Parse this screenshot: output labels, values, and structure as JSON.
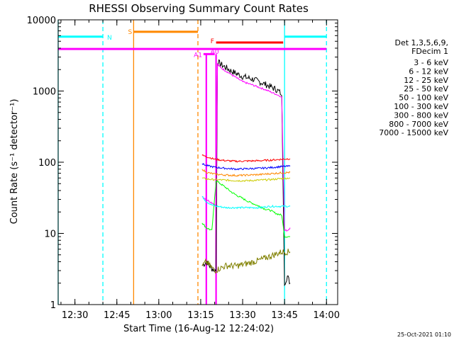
{
  "chart_data": {
    "type": "line",
    "title": "RHESSI Observing Summary Count Rates",
    "xlabel": "Start Time (16-Aug-12 12:24:02)",
    "ylabel": "Count Rate (s⁻¹ detector⁻¹)",
    "timestamp": "25-Oct-2021 01:10",
    "yscale": "log",
    "xlim": [
      0,
      100
    ],
    "ylim": [
      1,
      10000
    ],
    "x_unit": "minutes after 12:24:02",
    "xticks": [
      {
        "x": 6,
        "label": "12:30"
      },
      {
        "x": 21,
        "label": "12:45"
      },
      {
        "x": 36,
        "label": "13:00"
      },
      {
        "x": 51,
        "label": "13:15"
      },
      {
        "x": 66,
        "label": "13:30"
      },
      {
        "x": 81,
        "label": "13:45"
      },
      {
        "x": 96,
        "label": "14:00"
      }
    ],
    "yticks": [
      {
        "y": 1,
        "label": "1"
      },
      {
        "y": 10,
        "label": "10"
      },
      {
        "y": 100,
        "label": "100"
      },
      {
        "y": 1000,
        "label": "1000"
      },
      {
        "y": 10000,
        "label": "10000"
      }
    ],
    "legend": {
      "position": "right",
      "header": [
        "Det 1,3,5,6,9,",
        "FDecim 1"
      ],
      "entries": [
        {
          "label": "3 - 6 keV",
          "color": "#000000"
        },
        {
          "label": "6 - 12 keV",
          "color": "#ff00ff"
        },
        {
          "label": "12 - 25 keV",
          "color": "#00ff00"
        },
        {
          "label": "25 - 50 keV",
          "color": "#00ffff"
        },
        {
          "label": "50 - 100 keV",
          "color": "#cccc00"
        },
        {
          "label": "100 - 300 keV",
          "color": "#ff0000"
        },
        {
          "label": "300 - 800 keV",
          "color": "#0000ff"
        },
        {
          "label": "800 - 7000 keV",
          "color": "#ff8800"
        },
        {
          "label": "7000 - 15000 keV",
          "color": "#808000"
        }
      ]
    },
    "series": [
      {
        "name": "3 - 6 keV",
        "color": "#000000",
        "x": [
          51.5,
          53,
          55,
          56.5,
          57,
          58,
          62,
          66,
          70,
          74,
          78,
          79.5,
          80,
          81,
          82,
          83
        ],
        "y": [
          3.5,
          4,
          3.2,
          3,
          2600,
          2400,
          1900,
          1600,
          1450,
          1250,
          1050,
          950,
          800,
          2,
          2.5,
          2
        ]
      },
      {
        "name": "6 - 12 keV",
        "color": "#ff00ff",
        "x": [
          51.5,
          53,
          55,
          56.5,
          57,
          58,
          62,
          66,
          70,
          74,
          78,
          79.5,
          80,
          81,
          82,
          83
        ],
        "y": [
          33,
          30,
          27,
          25,
          2400,
          2150,
          1700,
          1350,
          1200,
          1050,
          900,
          850,
          820,
          11,
          11,
          12
        ]
      },
      {
        "name": "12 - 25 keV",
        "color": "#00ff00",
        "x": [
          51.5,
          53,
          55,
          56.5,
          58,
          60,
          62,
          64,
          66,
          68,
          70,
          72,
          74,
          76,
          78,
          80,
          81,
          83
        ],
        "y": [
          14,
          12,
          11,
          55,
          50,
          44,
          38,
          34,
          31,
          28,
          26,
          24,
          22,
          21,
          19,
          18,
          9,
          9
        ]
      },
      {
        "name": "25 - 50 keV",
        "color": "#00ffff",
        "x": [
          51.5,
          53,
          55,
          57,
          60,
          64,
          68,
          72,
          76,
          80,
          83
        ],
        "y": [
          33,
          28,
          25,
          24,
          23,
          23,
          23,
          23,
          24,
          24,
          24
        ]
      },
      {
        "name": "50 - 100 keV",
        "color": "#cccc00",
        "x": [
          51.5,
          53,
          56,
          60,
          64,
          68,
          72,
          76,
          80,
          83
        ],
        "y": [
          60,
          58,
          57,
          56,
          55,
          55,
          56,
          57,
          59,
          60
        ]
      },
      {
        "name": "100 - 300 keV",
        "color": "#ff0000",
        "x": [
          51.5,
          53,
          56,
          60,
          64,
          68,
          72,
          76,
          80,
          83
        ],
        "y": [
          125,
          120,
          110,
          105,
          103,
          104,
          105,
          107,
          110,
          112
        ]
      },
      {
        "name": "300 - 800 keV",
        "color": "#0000ff",
        "x": [
          51.5,
          53,
          56,
          60,
          64,
          68,
          72,
          76,
          80,
          83
        ],
        "y": [
          95,
          90,
          85,
          82,
          80,
          81,
          82,
          84,
          87,
          88
        ]
      },
      {
        "name": "800 - 7000 keV",
        "color": "#ff8800",
        "x": [
          51.5,
          53,
          56,
          60,
          64,
          68,
          72,
          76,
          80,
          83
        ],
        "y": [
          80,
          72,
          68,
          66,
          65,
          66,
          67,
          69,
          71,
          72
        ]
      },
      {
        "name": "7000 - 15000 keV",
        "color": "#808000",
        "x": [
          51.5,
          53,
          56,
          60,
          64,
          68,
          72,
          76,
          80,
          83
        ],
        "y": [
          3.5,
          4,
          3,
          3.5,
          3.5,
          3.8,
          4.2,
          4.8,
          5.5,
          5.5
        ]
      }
    ],
    "flag_bars": [
      {
        "label": "N",
        "color": "#00ffff",
        "y": 5800,
        "segments": [
          [
            0,
            16
          ],
          [
            81,
            96
          ]
        ]
      },
      {
        "label": "S",
        "color": "#ff8800",
        "y": 6800,
        "segments": [
          [
            27,
            50
          ]
        ]
      },
      {
        "label": "F",
        "color": "#ff0000",
        "y": 4800,
        "segments": [
          [
            56.5,
            80.5
          ]
        ]
      },
      {
        "label": "",
        "color": "#ff00ff",
        "y": 3900,
        "segments": [
          [
            0,
            96
          ]
        ]
      },
      {
        "label": "A1",
        "color": "#ff00ff",
        "y": 3300,
        "segments": [
          [
            52,
            56
          ]
        ]
      },
      {
        "label": "A0",
        "color": "#ff00ff",
        "y": 3500,
        "segments": []
      }
    ],
    "vertical_markers": [
      {
        "x": 0,
        "color": "#00ffff",
        "style": "solid"
      },
      {
        "x": 16,
        "color": "#00ffff",
        "style": "dashed"
      },
      {
        "x": 27,
        "color": "#ff8800",
        "style": "solid"
      },
      {
        "x": 50,
        "color": "#ff8800",
        "style": "dashed"
      },
      {
        "x": 81,
        "color": "#00ffff",
        "style": "solid"
      },
      {
        "x": 96,
        "color": "#00ffff",
        "style": "dashed"
      },
      {
        "x": 53,
        "color": "#ff00ff",
        "style": "solid"
      },
      {
        "x": 56.5,
        "color": "#ff00ff",
        "style": "solid"
      }
    ]
  }
}
